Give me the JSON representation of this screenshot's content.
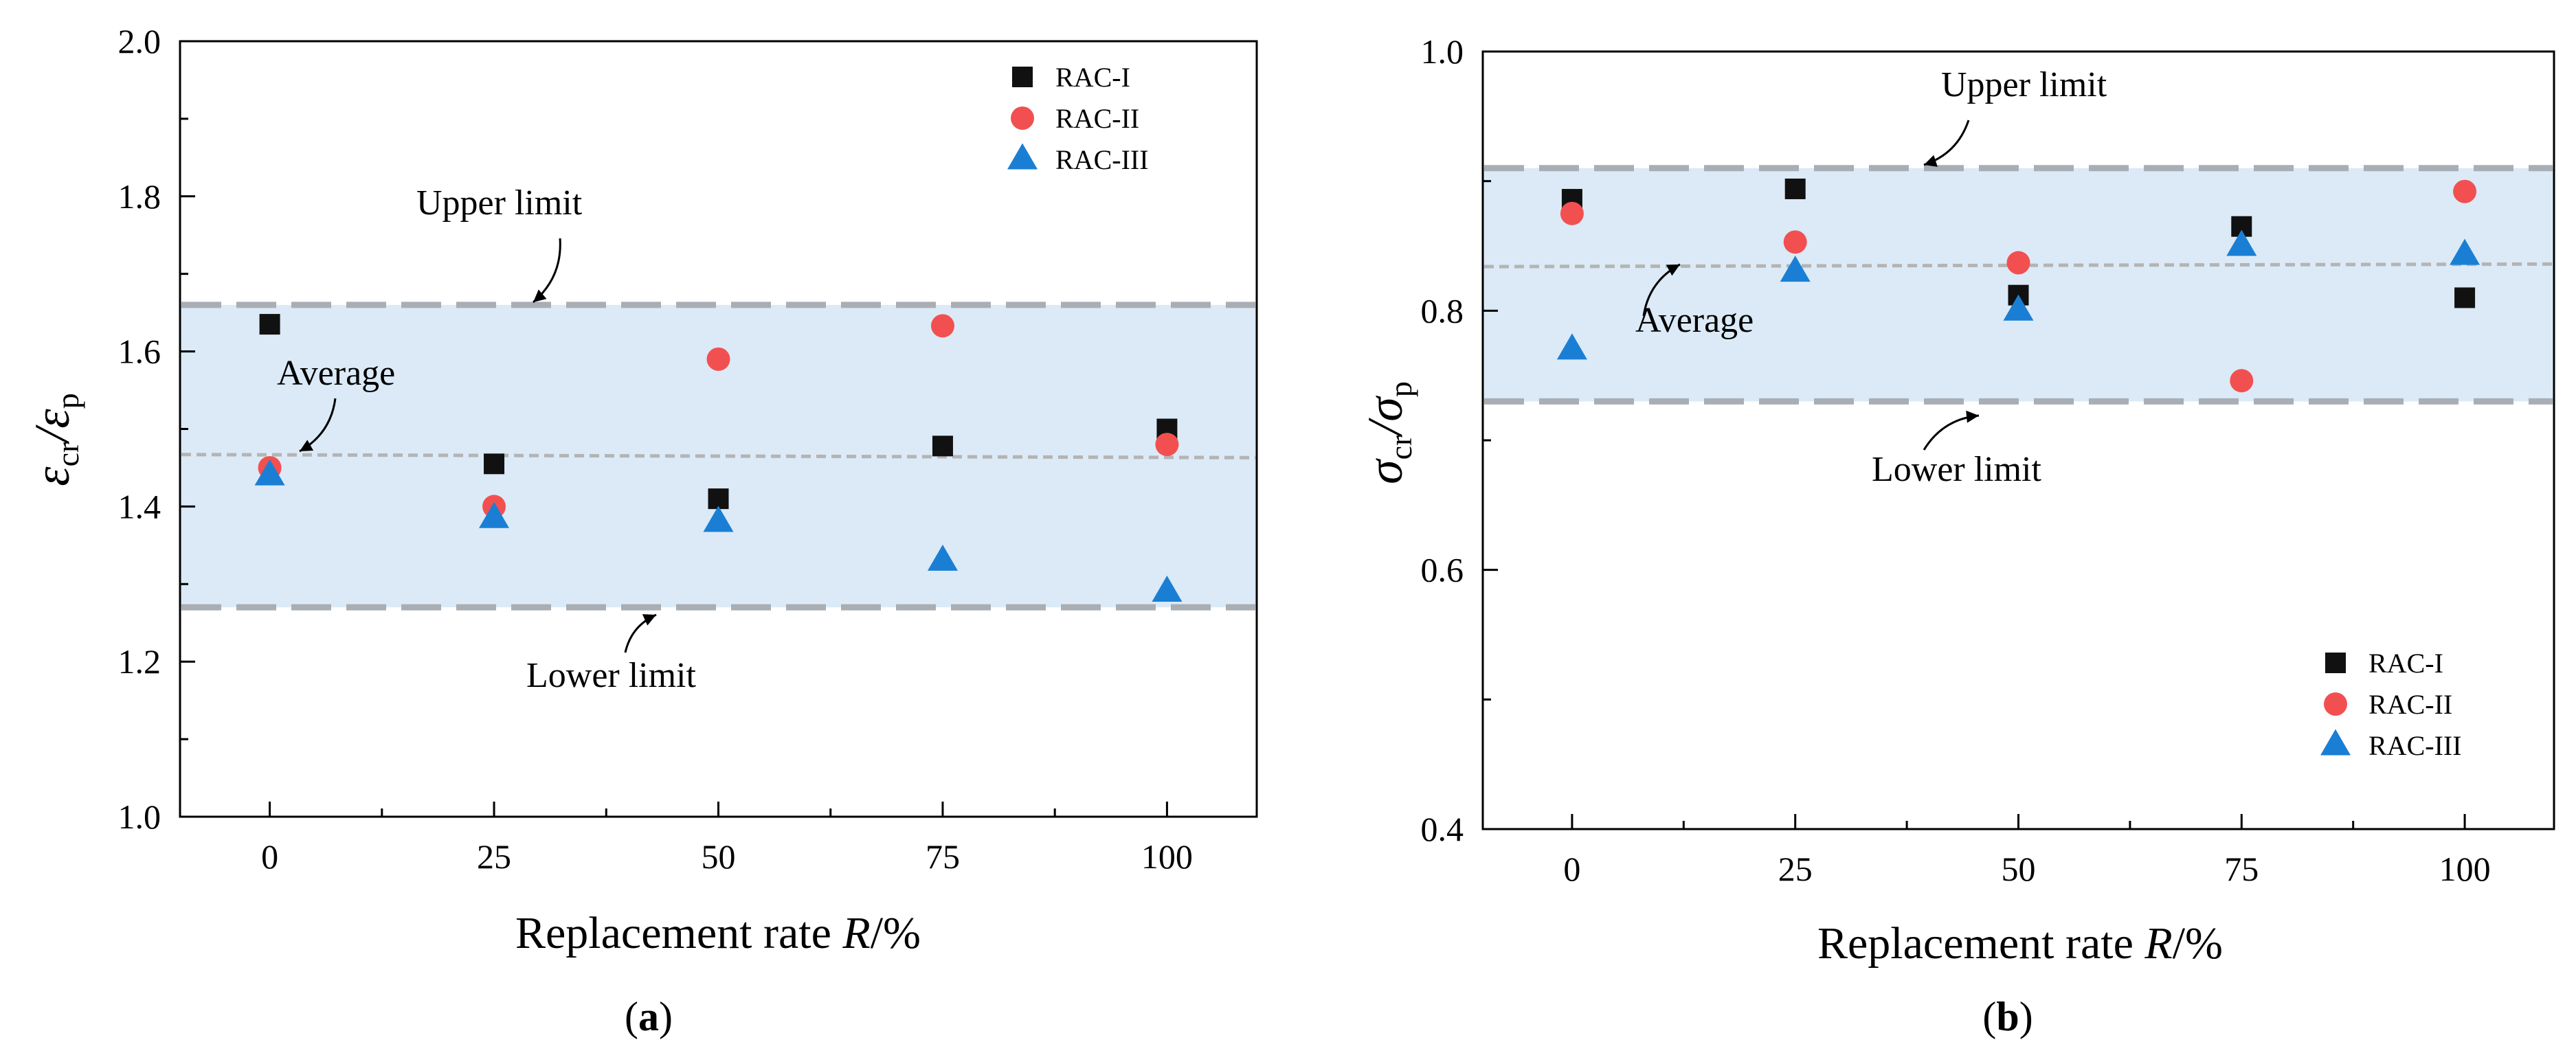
{
  "chart_data": [
    {
      "type": "scatter",
      "panel_label": "a",
      "xlabel_text": "Replacement rate ",
      "xlabel_var": "R",
      "xlabel_unit": "/%",
      "ylabel": {
        "num_symbol": "ε",
        "num_sub": "cr",
        "slash": "/",
        "den_symbol": "ε",
        "den_sub": "p"
      },
      "xlim": [
        -10,
        110
      ],
      "ylim": [
        1.0,
        2.0
      ],
      "xticks": [
        0,
        25,
        50,
        75,
        100
      ],
      "xtick_labels": [
        "0",
        "25",
        "50",
        "75",
        "100"
      ],
      "yticks": [
        1.0,
        1.2,
        1.4,
        1.6,
        1.8,
        2.0
      ],
      "ytick_labels": [
        "1.0",
        "1.2",
        "1.4",
        "1.6",
        "1.8",
        "2.0"
      ],
      "band": {
        "lower": 1.27,
        "upper": 1.66,
        "color": "#dbeaf6"
      },
      "limit_color": "#a8aeb4",
      "average": {
        "start": 1.467,
        "end": 1.463,
        "color": "#b4b4b4"
      },
      "annotations": {
        "upper": "Upper limit",
        "lower": "Lower limit",
        "average": "Average"
      },
      "legend_position": "top-right",
      "series": [
        {
          "name": "RAC-I",
          "marker": "square",
          "color": "#111111",
          "x": [
            0,
            25,
            50,
            75,
            100
          ],
          "y": [
            1.635,
            1.455,
            1.41,
            1.478,
            1.5
          ]
        },
        {
          "name": "RAC-II",
          "marker": "circle",
          "color": "#f25050",
          "x": [
            0,
            25,
            50,
            75,
            100
          ],
          "y": [
            1.45,
            1.4,
            1.59,
            1.633,
            1.48
          ]
        },
        {
          "name": "RAC-III",
          "marker": "triangle",
          "color": "#1a7fd4",
          "x": [
            0,
            25,
            50,
            75,
            100
          ],
          "y": [
            1.44,
            1.385,
            1.38,
            1.33,
            1.29
          ]
        }
      ]
    },
    {
      "type": "scatter",
      "panel_label": "b",
      "xlabel_text": "Replacement rate ",
      "xlabel_var": "R",
      "xlabel_unit": "/%",
      "ylabel": {
        "num_symbol": "σ",
        "num_sub": "cr",
        "slash": "/",
        "den_symbol": "σ",
        "den_sub": "p"
      },
      "xlim": [
        -10,
        110
      ],
      "ylim": [
        0.4,
        1.0
      ],
      "xticks": [
        0,
        25,
        50,
        75,
        100
      ],
      "xtick_labels": [
        "0",
        "25",
        "50",
        "75",
        "100"
      ],
      "yticks": [
        0.4,
        0.6,
        0.8,
        1.0
      ],
      "ytick_labels": [
        "0.4",
        "0.6",
        "0.8",
        "1.0"
      ],
      "band": {
        "lower": 0.73,
        "upper": 0.91,
        "color": "#dbeaf6"
      },
      "limit_color": "#a8aeb4",
      "average": {
        "start": 0.834,
        "end": 0.836,
        "color": "#b4b4b4"
      },
      "annotations": {
        "upper": "Upper limit",
        "lower": "Lower limit",
        "average": "Average"
      },
      "legend_position": "bottom-right",
      "series": [
        {
          "name": "RAC-I",
          "marker": "square",
          "color": "#111111",
          "x": [
            0,
            25,
            50,
            75,
            100
          ],
          "y": [
            0.886,
            0.894,
            0.812,
            0.865,
            0.81
          ]
        },
        {
          "name": "RAC-II",
          "marker": "circle",
          "color": "#f25050",
          "x": [
            0,
            25,
            50,
            75,
            100
          ],
          "y": [
            0.875,
            0.853,
            0.837,
            0.746,
            0.892
          ]
        },
        {
          "name": "RAC-III",
          "marker": "triangle",
          "color": "#1a7fd4",
          "x": [
            0,
            25,
            50,
            75,
            100
          ],
          "y": [
            0.77,
            0.83,
            0.8,
            0.85,
            0.843
          ]
        }
      ]
    }
  ]
}
